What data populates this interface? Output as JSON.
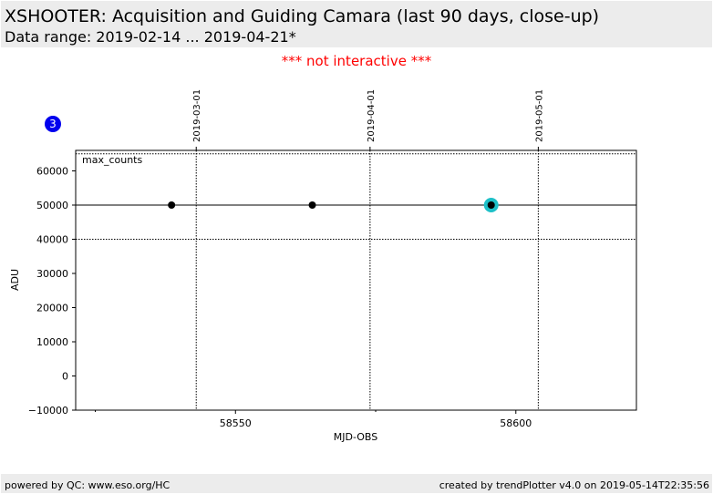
{
  "header": {
    "title": "XSHOOTER: Acquisition and Guiding Camara (last 90 days, close-up)",
    "subtitle": "Data range: 2019-02-14 ... 2019-04-21*"
  },
  "notice": "*** not interactive ***",
  "badge": {
    "label": "3",
    "color": "#0000ee"
  },
  "footer": {
    "left": "powered by QC: www.eso.org/HC",
    "right": "created by trendPlotter v4.0 on 2019-05-14T22:35:56"
  },
  "chart_data": {
    "type": "scatter",
    "xlabel": "MJD-OBS",
    "ylabel": "ADU",
    "xlim": [
      58521.5,
      58621.5
    ],
    "ylim": [
      -10000,
      66000
    ],
    "x_ticks": [
      58550,
      58600
    ],
    "x_tick_labels": [
      "58550",
      "58600"
    ],
    "x_minor_ticks": [
      58525,
      58575,
      58625
    ],
    "y_ticks": [
      -10000,
      0,
      10000,
      20000,
      30000,
      40000,
      50000,
      60000
    ],
    "y_tick_labels": [
      "−10000",
      "0",
      "10000",
      "20000",
      "30000",
      "40000",
      "50000",
      "60000"
    ],
    "date_lines": [
      {
        "x": 58543,
        "label": "2019-03-01"
      },
      {
        "x": 58574,
        "label": "2019-04-01"
      },
      {
        "x": 58604,
        "label": "2019-05-01"
      }
    ],
    "reference_lines": [
      {
        "y": 50000,
        "style": "solid"
      },
      {
        "y": 40000,
        "style": "dotted"
      },
      {
        "y": 65000,
        "style": "dotted"
      }
    ],
    "series": [
      {
        "name": "max_counts",
        "x": [
          58538.6,
          58563.7,
          58595.6
        ],
        "y": [
          50000,
          50000,
          50000
        ],
        "color": "#000000"
      }
    ],
    "highlight": {
      "x": 58595.6,
      "y": 50000,
      "color": "#1ec0c8"
    },
    "grid": false
  }
}
